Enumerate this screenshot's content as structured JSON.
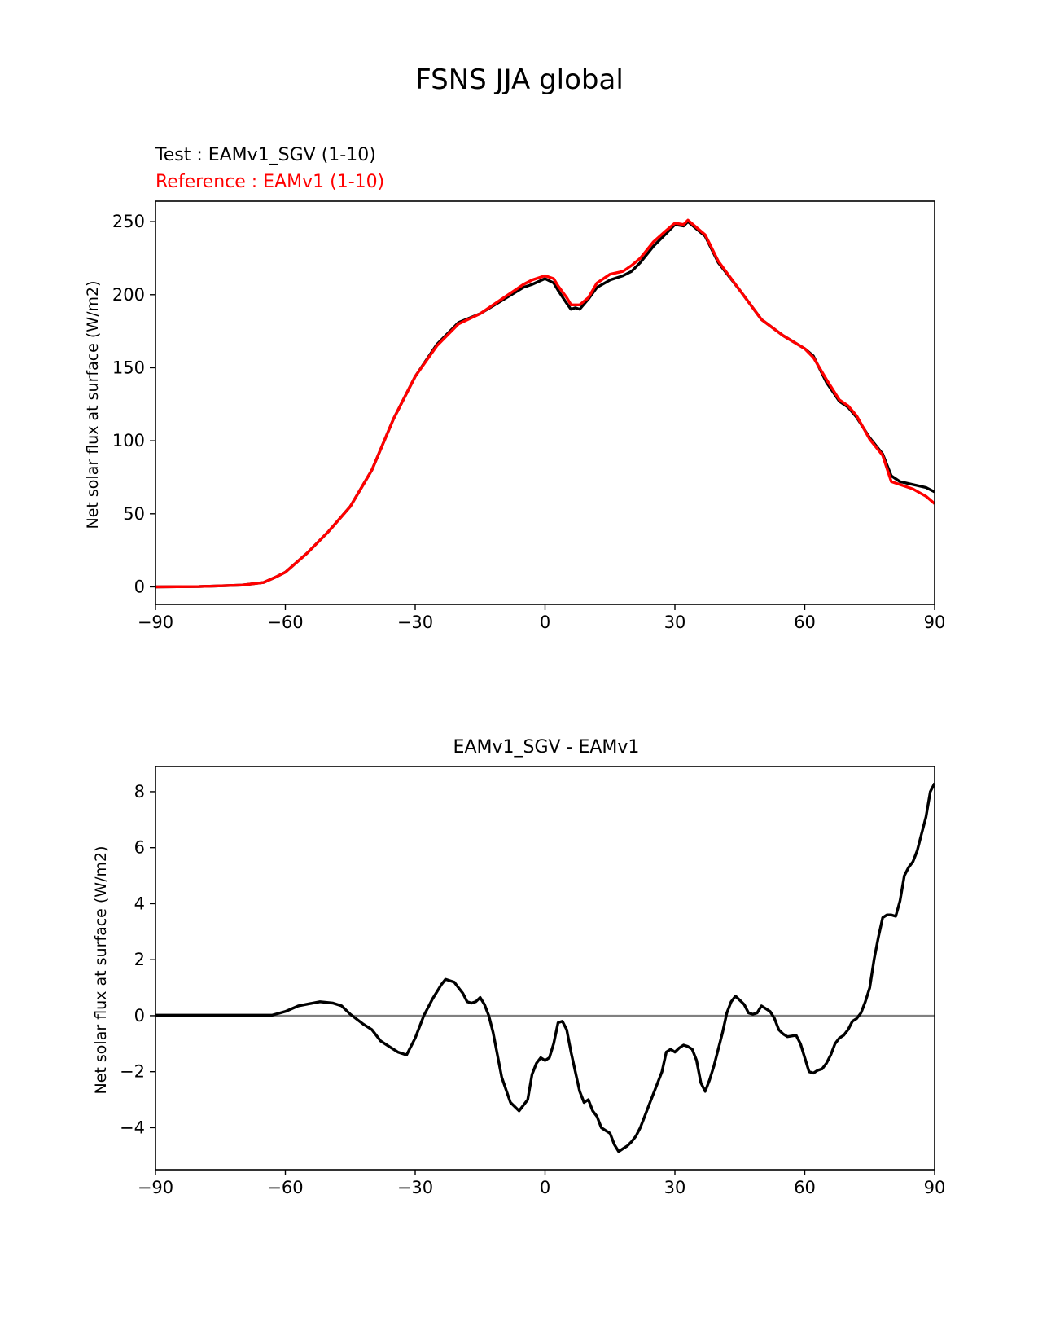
{
  "figure_title": "FSNS JJA global",
  "colors": {
    "test": "#000000",
    "reference": "#ff0000",
    "zero_line": "#808080",
    "axes": "#000000"
  },
  "chart_data": [
    {
      "type": "line",
      "title": "",
      "legend": [
        "Test : EAMv1_SGV (1-10)",
        "Reference : EAMv1 (1-10)"
      ],
      "test_label": "Test : EAMv1_SGV (1-10)",
      "reference_label": "Reference : EAMv1 (1-10)",
      "xlabel": "",
      "ylabel": "Net solar flux at surface (W/m2)",
      "xlim": [
        -90,
        90
      ],
      "ylim": [
        -12,
        264
      ],
      "xticks": [
        -90,
        -60,
        -30,
        0,
        30,
        60,
        90
      ],
      "xtick_labels": [
        "−90",
        "−60",
        "−30",
        "0",
        "30",
        "60",
        "90"
      ],
      "yticks": [
        0,
        50,
        100,
        150,
        200,
        250
      ],
      "ytick_labels": [
        "0",
        "50",
        "100",
        "150",
        "200",
        "250"
      ],
      "x": [
        -90,
        -80,
        -70,
        -65,
        -62,
        -60,
        -55,
        -50,
        -45,
        -40,
        -35,
        -30,
        -25,
        -20,
        -15,
        -10,
        -5,
        -3,
        0,
        2,
        3,
        5,
        6,
        7,
        8,
        10,
        12,
        15,
        18,
        20,
        22,
        25,
        28,
        30,
        32,
        33,
        35,
        37,
        40,
        45,
        50,
        55,
        60,
        62,
        65,
        68,
        70,
        72,
        75,
        78,
        80,
        82,
        85,
        88,
        90
      ],
      "series": [
        {
          "name": "Test : EAMv1_SGV (1-10)",
          "values": [
            0,
            0.2,
            1.2,
            3,
            7,
            10,
            23,
            38,
            55,
            80,
            115,
            144,
            166,
            181,
            187,
            196,
            205,
            207,
            211,
            208,
            203,
            194,
            190,
            191,
            190,
            197,
            205,
            210,
            213,
            216,
            222,
            233,
            242,
            248,
            247,
            250,
            245,
            240,
            222,
            203,
            183,
            172,
            163,
            158,
            140,
            127,
            123,
            116,
            102,
            91,
            76,
            72,
            70,
            68,
            65
          ]
        },
        {
          "name": "Reference : EAMv1 (1-10)",
          "values": [
            0,
            0.2,
            1.2,
            3,
            7,
            10,
            23,
            38,
            55,
            80,
            115,
            144,
            165,
            180,
            187,
            197,
            207,
            210,
            213,
            211,
            206,
            198,
            193,
            193,
            193,
            198,
            208,
            214,
            216,
            220,
            225,
            236,
            244,
            249,
            248,
            251,
            246,
            241,
            223,
            203,
            183,
            172,
            163,
            157,
            142,
            128,
            124,
            117,
            101,
            90,
            72,
            70,
            67,
            62,
            57
          ]
        }
      ]
    },
    {
      "type": "line",
      "title": "EAMv1_SGV - EAMv1",
      "xlabel": "",
      "ylabel": "Net solar flux at surface (W/m2)",
      "xlim": [
        -90,
        90
      ],
      "ylim": [
        -5.5,
        8.9
      ],
      "xticks": [
        -90,
        -60,
        -30,
        0,
        30,
        60,
        90
      ],
      "xtick_labels": [
        "−90",
        "−60",
        "−30",
        "0",
        "30",
        "60",
        "90"
      ],
      "yticks": [
        -4,
        -2,
        0,
        2,
        4,
        6,
        8
      ],
      "ytick_labels": [
        "−4",
        "−2",
        "0",
        "2",
        "4",
        "6",
        "8"
      ],
      "x": [
        -90,
        -80,
        -70,
        -63,
        -60,
        -57,
        -52,
        -49,
        -47,
        -45,
        -42,
        -40,
        -38,
        -36,
        -34,
        -32,
        -30,
        -28,
        -26,
        -24,
        -23,
        -21,
        -20,
        -19,
        -18,
        -17,
        -16,
        -15,
        -14,
        -13,
        -12,
        -10,
        -8,
        -6,
        -4,
        -3,
        -2,
        -1,
        0,
        1,
        2,
        3,
        4,
        5,
        6,
        7,
        8,
        9,
        10,
        11,
        12,
        13,
        14,
        15,
        16,
        17,
        18,
        19,
        20,
        21,
        22,
        23,
        24,
        25,
        27,
        28,
        29,
        30,
        31,
        32,
        33,
        34,
        35,
        36,
        37,
        38,
        39,
        40,
        41,
        42,
        43,
        44,
        45,
        46,
        47,
        48,
        49,
        50,
        51,
        52,
        53,
        54,
        55,
        56,
        58,
        59,
        60,
        61,
        62,
        63,
        64,
        65,
        66,
        67,
        68,
        69,
        70,
        71,
        72,
        73,
        74,
        75,
        76,
        77,
        78,
        79,
        80,
        81,
        82,
        83,
        84,
        85,
        86,
        87,
        88,
        89,
        90
      ],
      "series": [
        {
          "name": "EAMv1_SGV - EAMv1",
          "values": [
            0.02,
            0.02,
            0.02,
            0.02,
            0.15,
            0.35,
            0.5,
            0.45,
            0.35,
            0.05,
            -0.3,
            -0.5,
            -0.9,
            -1.1,
            -1.3,
            -1.4,
            -0.8,
            0.0,
            0.6,
            1.1,
            1.3,
            1.2,
            1.0,
            0.8,
            0.5,
            0.45,
            0.5,
            0.65,
            0.4,
            0.0,
            -0.6,
            -2.2,
            -3.1,
            -3.4,
            -3.0,
            -2.1,
            -1.7,
            -1.5,
            -1.6,
            -1.5,
            -1.0,
            -0.25,
            -0.2,
            -0.5,
            -1.3,
            -2.0,
            -2.7,
            -3.1,
            -3.0,
            -3.4,
            -3.6,
            -4.0,
            -4.1,
            -4.2,
            -4.6,
            -4.85,
            -4.75,
            -4.65,
            -4.5,
            -4.3,
            -4.0,
            -3.6,
            -3.2,
            -2.8,
            -2.0,
            -1.3,
            -1.2,
            -1.3,
            -1.15,
            -1.05,
            -1.1,
            -1.2,
            -1.6,
            -2.4,
            -2.7,
            -2.3,
            -1.8,
            -1.2,
            -0.6,
            0.1,
            0.5,
            0.7,
            0.55,
            0.4,
            0.1,
            0.05,
            0.1,
            0.35,
            0.25,
            0.15,
            -0.1,
            -0.5,
            -0.65,
            -0.75,
            -0.7,
            -1.0,
            -1.5,
            -2.0,
            -2.05,
            -1.95,
            -1.9,
            -1.7,
            -1.4,
            -1.0,
            -0.8,
            -0.7,
            -0.5,
            -0.2,
            -0.1,
            0.1,
            0.5,
            1.0,
            2.0,
            2.8,
            3.5,
            3.6,
            3.6,
            3.55,
            4.1,
            5.0,
            5.3,
            5.5,
            5.9,
            6.5,
            7.1,
            8.0,
            8.3
          ]
        }
      ]
    }
  ]
}
